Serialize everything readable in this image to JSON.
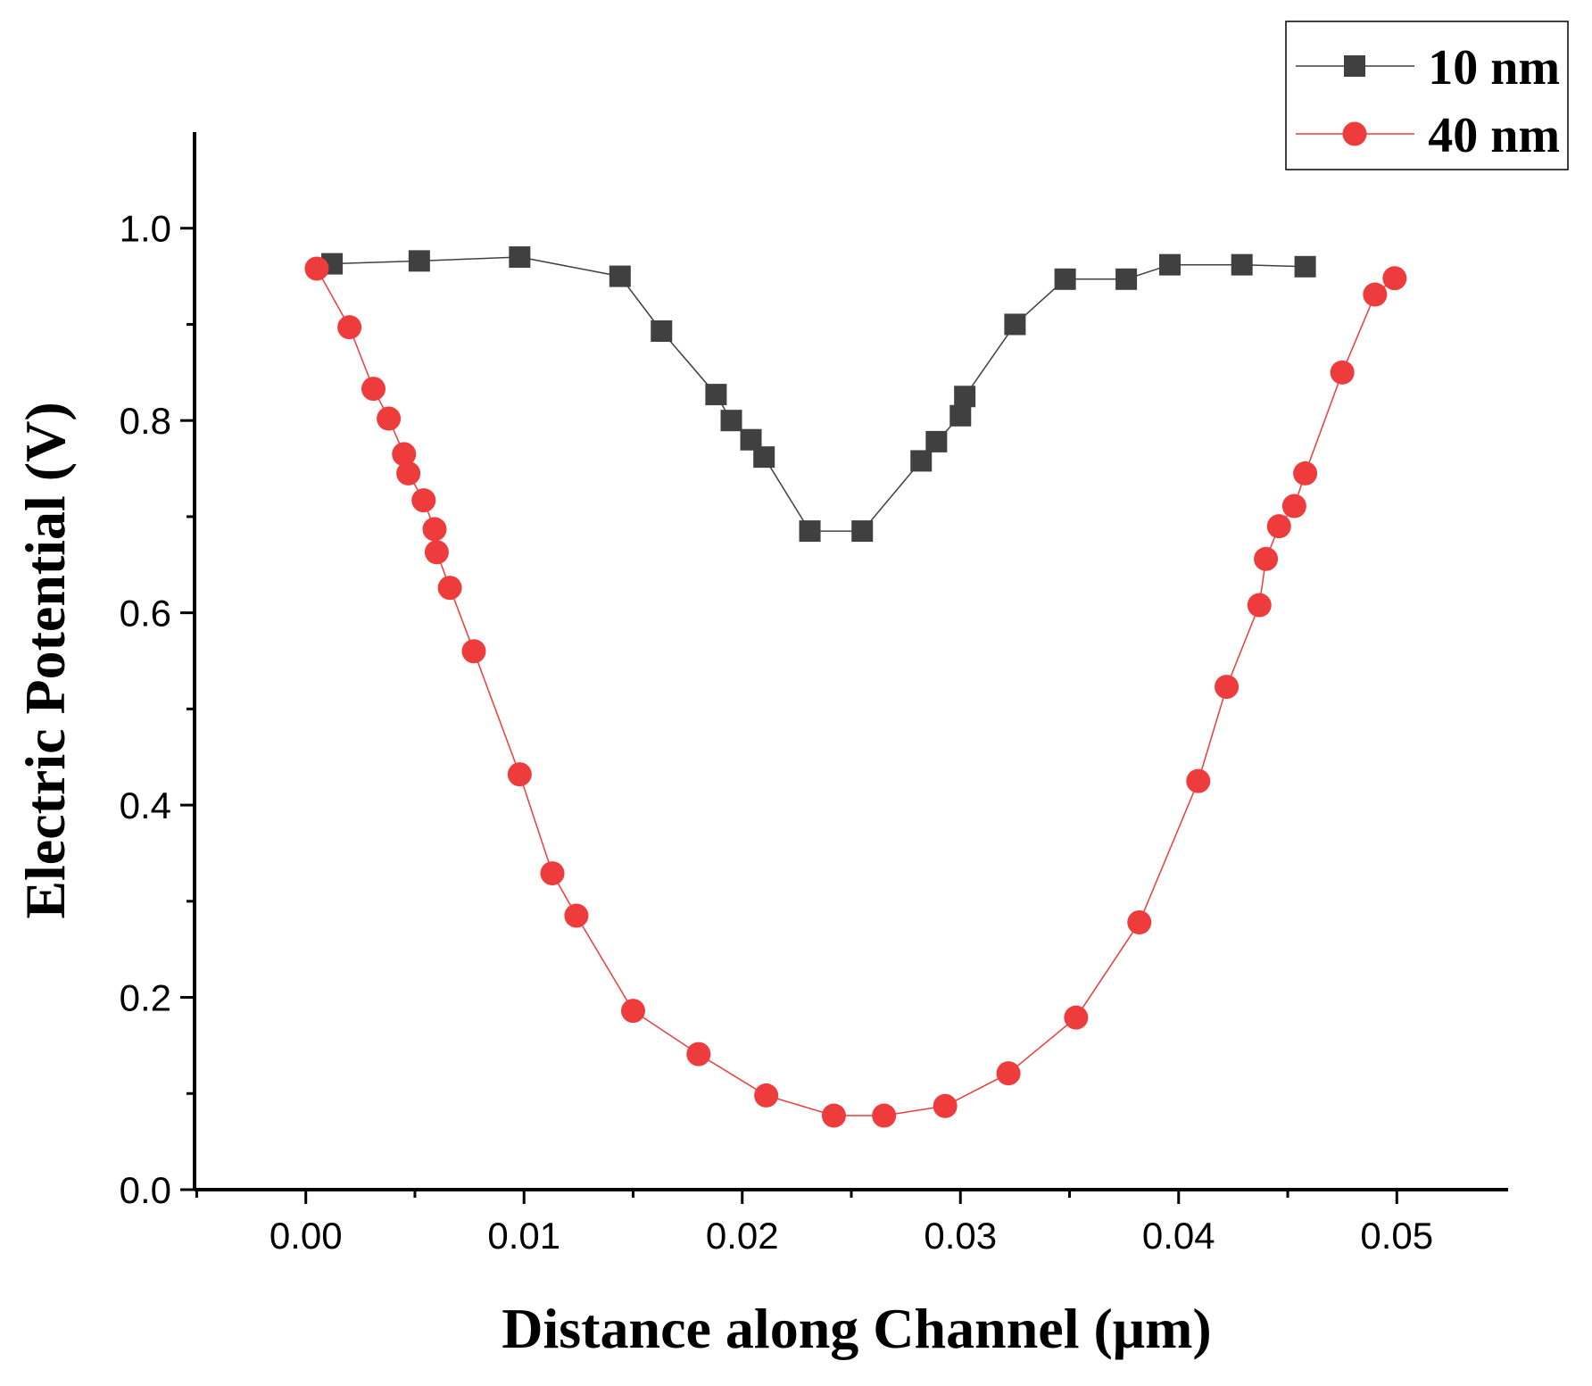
{
  "chart_data": {
    "type": "line",
    "title": "",
    "xlabel": "Distance along Channel (μm)",
    "ylabel": "Electric Potential (V)",
    "xlim": [
      -0.0051,
      0.0551
    ],
    "ylim": [
      0.0,
      1.1
    ],
    "x_ticks": [
      0.0,
      0.01,
      0.02,
      0.03,
      0.04,
      0.05
    ],
    "x_tick_labels": [
      "0.00",
      "0.01",
      "0.02",
      "0.03",
      "0.04",
      "0.05"
    ],
    "y_ticks": [
      0.0,
      0.2,
      0.4,
      0.6,
      0.8,
      1.0
    ],
    "y_tick_labels": [
      "0.0",
      "0.2",
      "0.4",
      "0.6",
      "0.8",
      "1.0"
    ],
    "legend_position": "top-right",
    "grid": false,
    "series": [
      {
        "name": "10 nm",
        "marker": "square",
        "color": "#404040",
        "x": [
          0.0012,
          0.0052,
          0.0098,
          0.0144,
          0.0163,
          0.0188,
          0.0195,
          0.0204,
          0.021,
          0.0231,
          0.0255,
          0.0282,
          0.0289,
          0.03,
          0.0302,
          0.0325,
          0.0348,
          0.0376,
          0.0396,
          0.0429,
          0.0458
        ],
        "y": [
          0.963,
          0.966,
          0.97,
          0.95,
          0.893,
          0.827,
          0.8,
          0.78,
          0.762,
          0.685,
          0.685,
          0.758,
          0.778,
          0.805,
          0.825,
          0.9,
          0.947,
          0.947,
          0.962,
          0.962,
          0.96
        ]
      },
      {
        "name": "40 nm",
        "marker": "circle",
        "color": "#ee3b3b",
        "x": [
          0.0005,
          0.002,
          0.0031,
          0.0038,
          0.0045,
          0.0047,
          0.0054,
          0.0059,
          0.006,
          0.0066,
          0.0077,
          0.0098,
          0.0113,
          0.0124,
          0.015,
          0.018,
          0.0211,
          0.0242,
          0.0265,
          0.0293,
          0.0322,
          0.0353,
          0.0382,
          0.0409,
          0.0422,
          0.0437,
          0.044,
          0.0446,
          0.0453,
          0.0458,
          0.0475,
          0.049,
          0.0499
        ],
        "y": [
          0.958,
          0.897,
          0.833,
          0.802,
          0.765,
          0.745,
          0.717,
          0.687,
          0.663,
          0.626,
          0.56,
          0.432,
          0.329,
          0.285,
          0.186,
          0.141,
          0.098,
          0.077,
          0.077,
          0.087,
          0.121,
          0.179,
          0.278,
          0.425,
          0.523,
          0.608,
          0.656,
          0.69,
          0.711,
          0.745,
          0.85,
          0.931,
          0.948
        ]
      }
    ]
  }
}
